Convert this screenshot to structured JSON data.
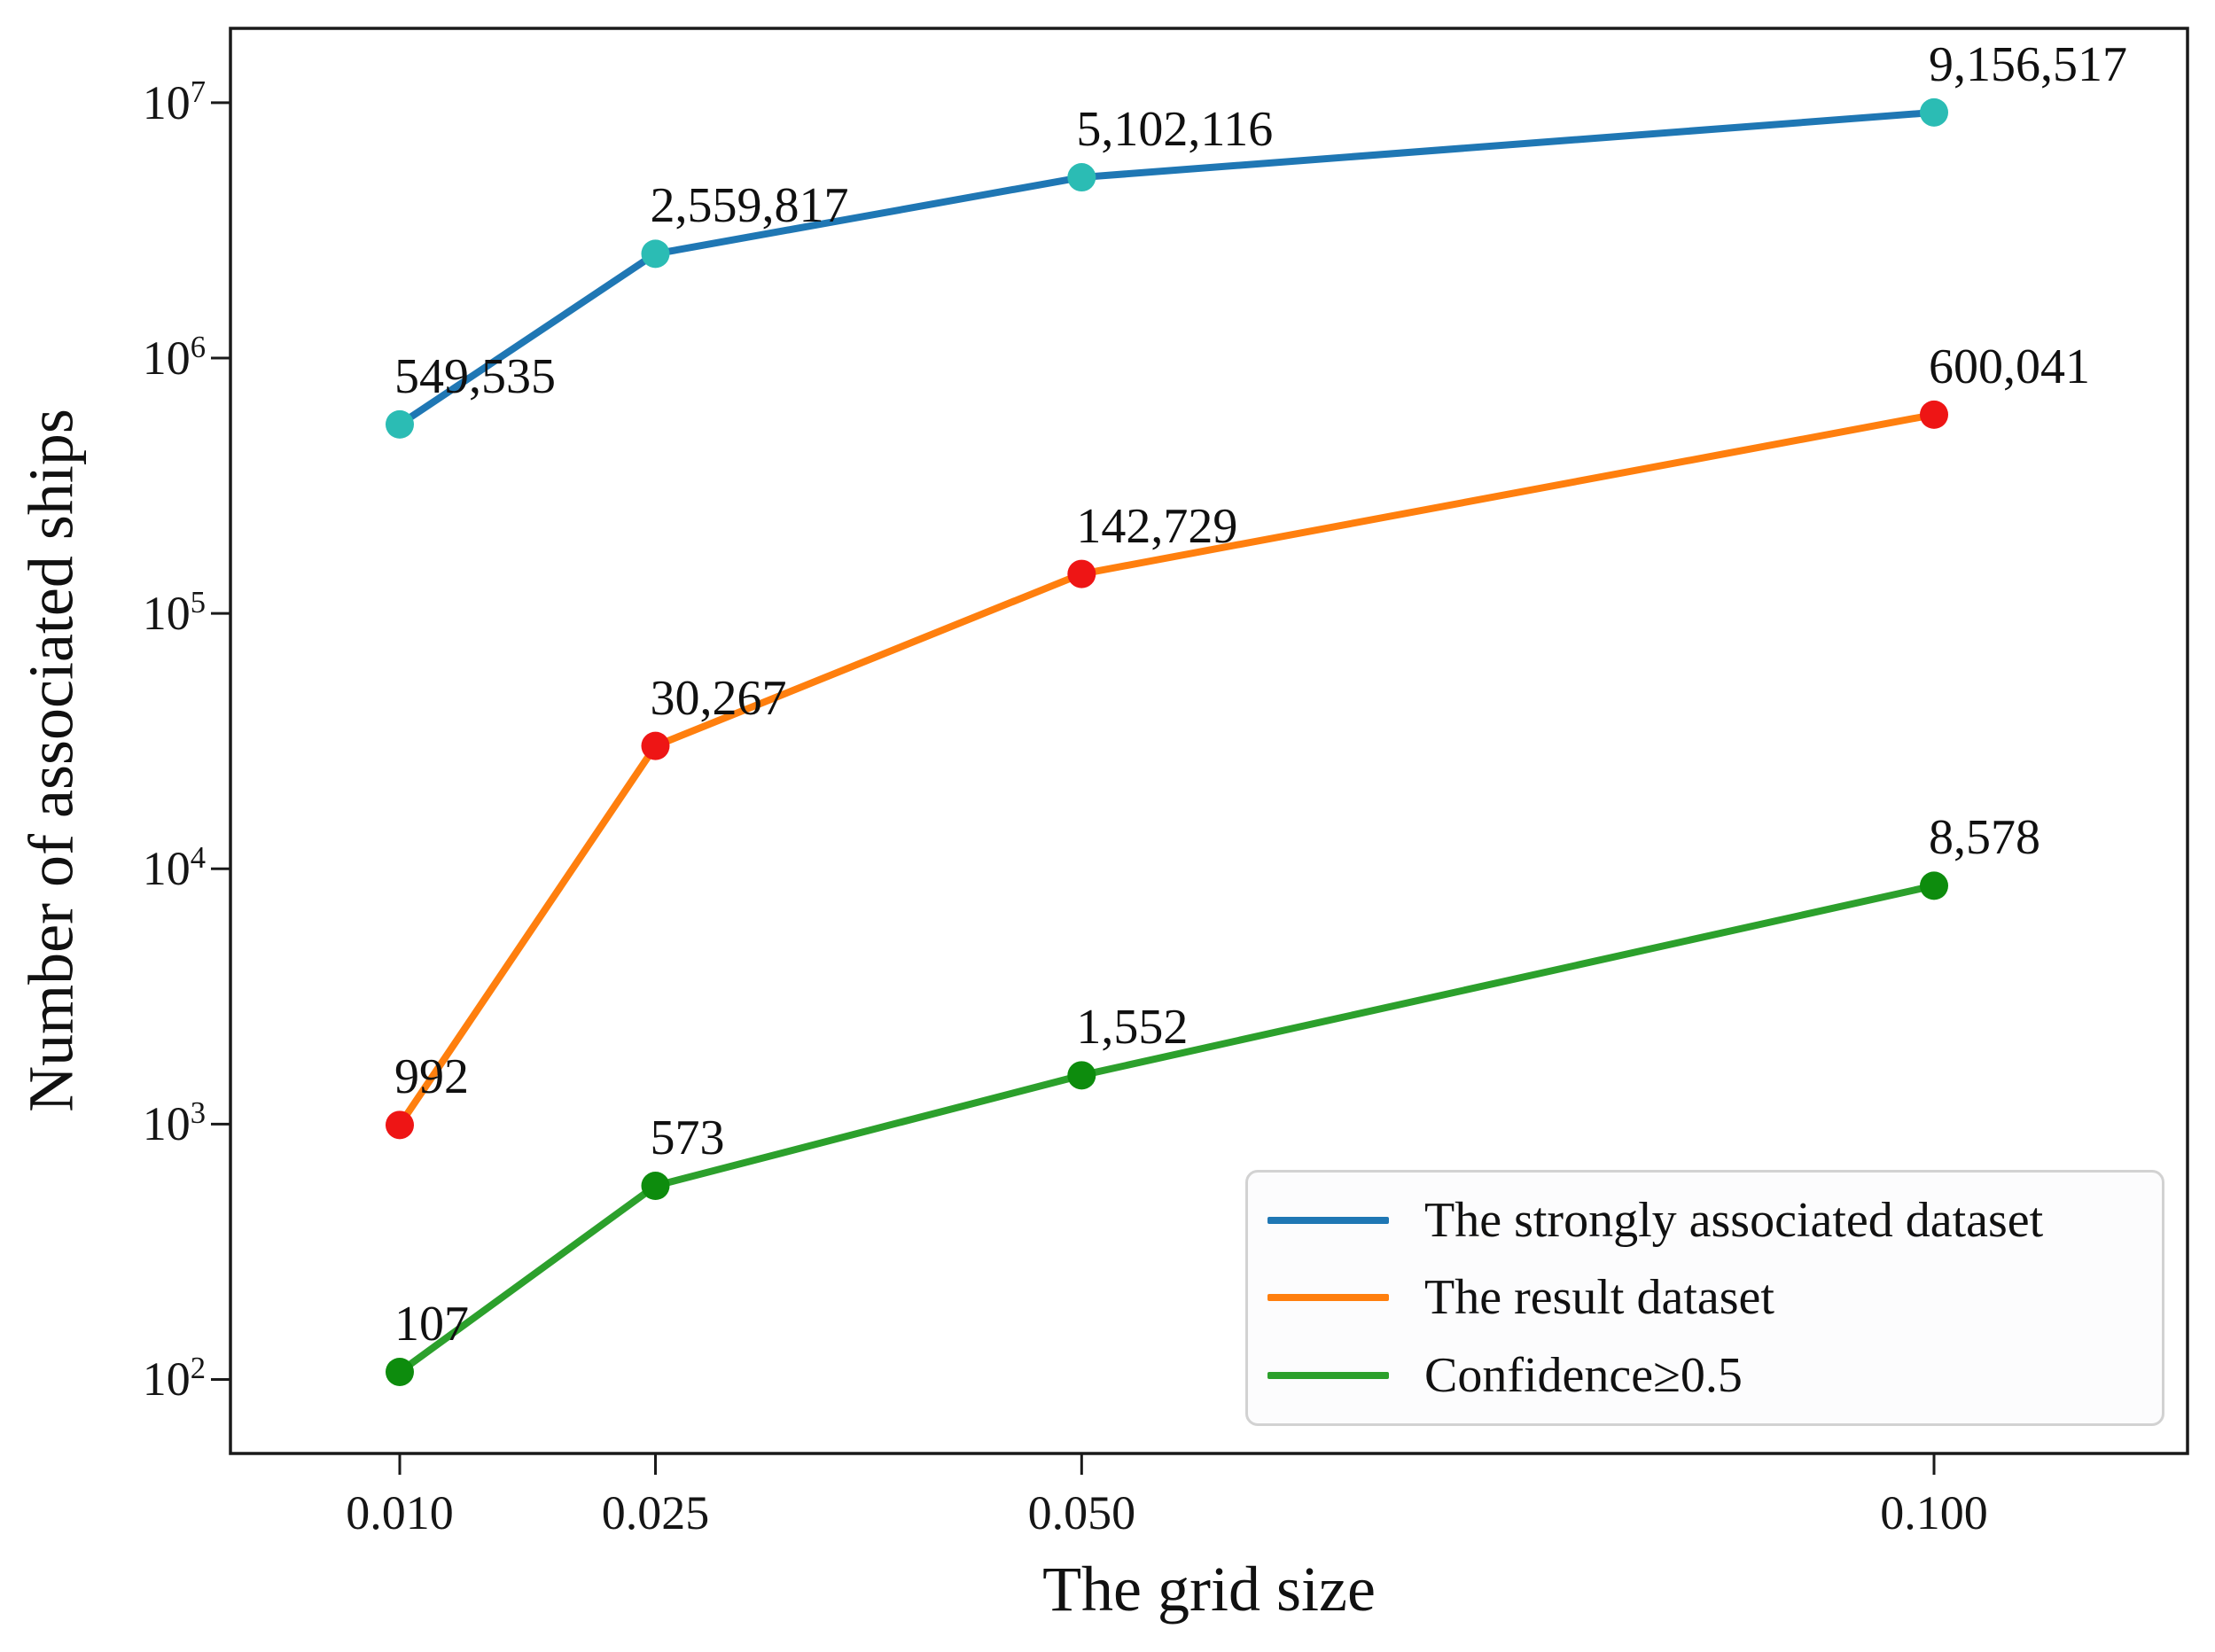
{
  "figure": {
    "background": "#ffffff",
    "spine_color": "#1a1a1a"
  },
  "chart_data": {
    "type": "line",
    "title": "",
    "xlabel": "The grid size",
    "ylabel": "Number of associated ships",
    "x": [
      0.01,
      0.025,
      0.05,
      0.1
    ],
    "xtick_labels": [
      "0.010",
      "0.025",
      "0.050",
      "0.100"
    ],
    "yscale": "log",
    "ytick_exponents": [
      "2",
      "3",
      "4",
      "5",
      "6",
      "7"
    ],
    "ytick_base": "10",
    "xlim": [
      7e-05,
      0.11487
    ],
    "ylim_log10": [
      1.71,
      7.291
    ],
    "grid": false,
    "legend_position": "lower right",
    "series": [
      {
        "name": "The strongly associated dataset",
        "line_color": "#1f77b4",
        "marker_color": "#2bbcb4",
        "values": [
          549535,
          2559817,
          5102116,
          9156517
        ],
        "labels": [
          "549,535",
          "2,559,817",
          "5,102,116",
          "9,156,517"
        ]
      },
      {
        "name": "The result dataset",
        "line_color": "#ff7f0e",
        "marker_color": "#ee1515",
        "values": [
          992,
          30267,
          142729,
          600041
        ],
        "labels": [
          "992",
          "30,267",
          "142,729",
          "600,041"
        ]
      },
      {
        "name": "Confidence≥0.5",
        "line_color": "#2ca02c",
        "marker_color": "#0d8c0d",
        "values": [
          107,
          573,
          1552,
          8578
        ],
        "labels": [
          "107",
          "573",
          "1,552",
          "8,578"
        ]
      }
    ]
  }
}
